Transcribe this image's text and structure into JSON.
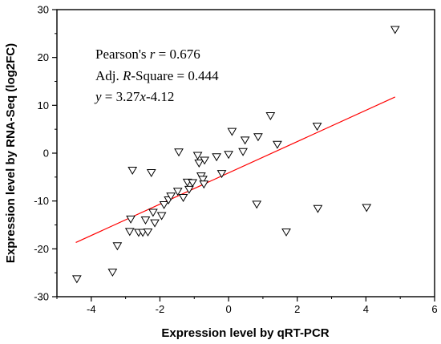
{
  "chart_data": {
    "type": "scatter",
    "xlabel": "Expression level by qRT-PCR",
    "ylabel": "Expression level by RNA-Seq (log2FC)",
    "xlim": [
      -5,
      6
    ],
    "ylim": [
      -30,
      30
    ],
    "x_ticks": [
      -4,
      -2,
      0,
      2,
      4,
      6
    ],
    "y_ticks": [
      -30,
      -20,
      -10,
      0,
      10,
      20,
      30
    ],
    "x_tick_labels": [
      "-4",
      "-2",
      "0",
      "2",
      "4",
      "6"
    ],
    "y_tick_labels": [
      "-30",
      "-20",
      "-10",
      "0",
      "10",
      "20",
      "30"
    ],
    "annotations": {
      "pearson_prefix": "Pearson's ",
      "pearson_r": "r",
      "pearson_value": " = 0.676",
      "adj_prefix": "Adj. ",
      "adj_r": "R",
      "adj_value": "-Square = 0.444",
      "eq_y": "y",
      "eq_mid": " = 3.27",
      "eq_x": "x",
      "eq_tail": "-4.12"
    },
    "fit_line": {
      "slope": 3.27,
      "intercept": -4.12,
      "x_range": [
        -4.45,
        4.85
      ],
      "color": "#ff0000"
    },
    "marker": "triangle-down-open",
    "points": [
      {
        "x": -4.42,
        "y": -26.3
      },
      {
        "x": -3.38,
        "y": -24.9
      },
      {
        "x": -3.24,
        "y": -19.4
      },
      {
        "x": -2.88,
        "y": -16.4
      },
      {
        "x": -2.85,
        "y": -13.8
      },
      {
        "x": -2.8,
        "y": -3.6
      },
      {
        "x": -2.62,
        "y": -16.6
      },
      {
        "x": -2.5,
        "y": -16.6
      },
      {
        "x": -2.42,
        "y": -14.0
      },
      {
        "x": -2.35,
        "y": -16.5
      },
      {
        "x": -2.25,
        "y": -4.1
      },
      {
        "x": -2.2,
        "y": -12.4
      },
      {
        "x": -2.15,
        "y": -14.6
      },
      {
        "x": -1.95,
        "y": -13.1
      },
      {
        "x": -1.88,
        "y": -10.8
      },
      {
        "x": -1.75,
        "y": -9.8
      },
      {
        "x": -1.68,
        "y": -9.0
      },
      {
        "x": -1.48,
        "y": -8.0
      },
      {
        "x": -1.45,
        "y": 0.2
      },
      {
        "x": -1.32,
        "y": -9.3
      },
      {
        "x": -1.2,
        "y": -6.1
      },
      {
        "x": -1.15,
        "y": -7.6
      },
      {
        "x": -1.05,
        "y": -6.2
      },
      {
        "x": -0.9,
        "y": -0.5
      },
      {
        "x": -0.86,
        "y": -2.1
      },
      {
        "x": -0.8,
        "y": -4.8
      },
      {
        "x": -0.75,
        "y": -5.5
      },
      {
        "x": -0.72,
        "y": -6.5
      },
      {
        "x": -0.7,
        "y": -1.5
      },
      {
        "x": -0.35,
        "y": -0.8
      },
      {
        "x": -0.2,
        "y": -4.3
      },
      {
        "x": 0.0,
        "y": -0.3
      },
      {
        "x": 0.1,
        "y": 4.5
      },
      {
        "x": 0.42,
        "y": 0.3
      },
      {
        "x": 0.48,
        "y": 2.7
      },
      {
        "x": 0.82,
        "y": -10.7
      },
      {
        "x": 0.86,
        "y": 3.4
      },
      {
        "x": 1.22,
        "y": 7.8
      },
      {
        "x": 1.42,
        "y": 1.8
      },
      {
        "x": 1.68,
        "y": -16.5
      },
      {
        "x": 2.58,
        "y": 5.6
      },
      {
        "x": 2.6,
        "y": -11.6
      },
      {
        "x": 4.02,
        "y": -11.4
      },
      {
        "x": 4.85,
        "y": 25.8
      }
    ]
  }
}
